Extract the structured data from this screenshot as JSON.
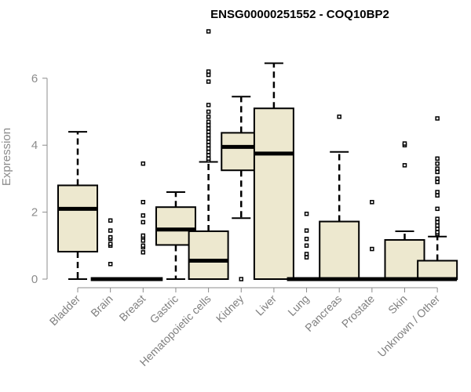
{
  "chart_data": {
    "type": "boxplot",
    "title": "ENSG00000251552 - COQ10BP2",
    "xlabel": "",
    "ylabel": "Expression",
    "ylim": [
      0,
      7.4
    ],
    "yticks": [
      0,
      2,
      4,
      6
    ],
    "grid": false,
    "box_color": "#ede8cf",
    "categories": [
      "Bladder",
      "Brain",
      "Breast",
      "Gastric",
      "Hematopoietic cells",
      "Kidney",
      "Liver",
      "Lung",
      "Pancreas",
      "Prostate",
      "Skin",
      "Unknown / Other"
    ],
    "boxes": [
      {
        "whisker_low": 0,
        "q1": 0.82,
        "median": 2.1,
        "q3": 2.8,
        "whisker_high": 4.4,
        "outliers": []
      },
      {
        "whisker_low": 0,
        "q1": 0,
        "median": 0,
        "q3": 0,
        "whisker_high": 0,
        "outliers": [
          0.45,
          1.0,
          1.05,
          1.2,
          1.25,
          1.45,
          1.75
        ]
      },
      {
        "whisker_low": 0,
        "q1": 0,
        "median": 0,
        "q3": 0,
        "whisker_high": 0,
        "outliers": [
          0.8,
          0.95,
          1.0,
          1.15,
          1.25,
          1.3,
          1.7,
          1.9,
          2.3,
          3.45
        ]
      },
      {
        "whisker_low": 0,
        "q1": 1.02,
        "median": 1.48,
        "q3": 2.15,
        "whisker_high": 2.6,
        "outliers": []
      },
      {
        "whisker_low": 0,
        "q1": 0,
        "median": 0.55,
        "q3": 1.43,
        "whisker_high": 3.5,
        "outliers": [
          3.55,
          3.6,
          3.7,
          3.8,
          3.9,
          4.0,
          4.1,
          4.2,
          4.3,
          4.4,
          4.5,
          4.6,
          4.7,
          4.85,
          5.0,
          5.2,
          5.9,
          6.1,
          6.2,
          7.4
        ]
      },
      {
        "whisker_low": 1.82,
        "q1": 3.25,
        "median": 3.95,
        "q3": 4.37,
        "whisker_high": 5.45,
        "outliers": [
          0
        ]
      },
      {
        "whisker_low": 0,
        "q1": 0,
        "median": 3.75,
        "q3": 5.1,
        "whisker_high": 6.45,
        "outliers": []
      },
      {
        "whisker_low": 0,
        "q1": 0,
        "median": 0,
        "q3": 0,
        "whisker_high": 0,
        "outliers": [
          0.65,
          0.75,
          1.0,
          1.2,
          1.45,
          1.95
        ]
      },
      {
        "whisker_low": 0,
        "q1": 0,
        "median": 0,
        "q3": 1.72,
        "whisker_high": 3.8,
        "outliers": [
          4.85
        ]
      },
      {
        "whisker_low": 0,
        "q1": 0,
        "median": 0,
        "q3": 0,
        "whisker_high": 0,
        "outliers": [
          0.9,
          2.3
        ]
      },
      {
        "whisker_low": 0,
        "q1": 0,
        "median": 0,
        "q3": 1.17,
        "whisker_high": 1.43,
        "outliers": [
          3.4,
          4.0,
          4.05
        ]
      },
      {
        "whisker_low": 0,
        "q1": 0,
        "median": 0,
        "q3": 0.55,
        "whisker_high": 1.27,
        "outliers": [
          1.35,
          1.4,
          1.5,
          1.6,
          1.7,
          1.8,
          2.1,
          2.5,
          2.6,
          2.9,
          3.0,
          3.2,
          3.3,
          3.45,
          3.6,
          4.8
        ]
      }
    ]
  }
}
